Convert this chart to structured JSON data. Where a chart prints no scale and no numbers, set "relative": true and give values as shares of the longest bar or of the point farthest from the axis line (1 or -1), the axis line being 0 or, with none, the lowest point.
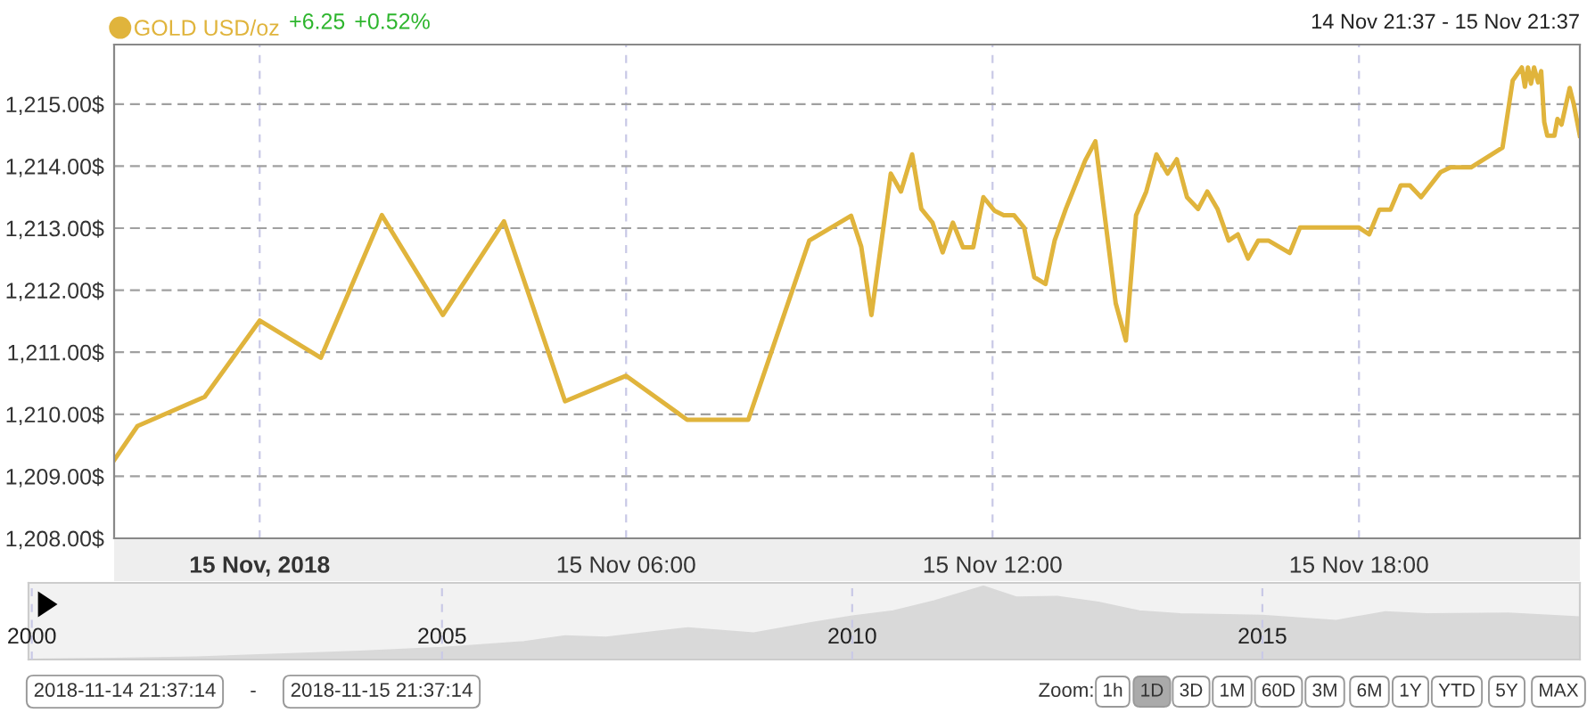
{
  "chart_data": [
    {
      "type": "line",
      "subtitle": "14 Nov 21:37 - 15 Nov 21:37",
      "legend": "top left",
      "grid": true,
      "line_style": "solid",
      "annotations": [
        "+6.25",
        "+0.52%"
      ],
      "xlim": [
        "2018-11-14T21:37",
        "2018-11-15T21:37"
      ],
      "xticks": [
        {
          "value": "2018-11-15T00:00",
          "label": "15 Nov, 2018"
        },
        {
          "value": "2018-11-15T06:00",
          "label": "15 Nov 06:00"
        },
        {
          "value": "2018-11-15T12:00",
          "label": "15 Nov 12:00"
        },
        {
          "value": "2018-11-15T18:00",
          "label": "15 Nov 18:00"
        }
      ],
      "ylim": [
        1208,
        1215.96
      ],
      "yticks": [
        {
          "value": 1208,
          "label": "1,208.00$"
        },
        {
          "value": 1209,
          "label": "1,209.00$"
        },
        {
          "value": 1210,
          "label": "1,210.00$"
        },
        {
          "value": 1211,
          "label": "1,211.00$"
        },
        {
          "value": 1212,
          "label": "1,212.00$"
        },
        {
          "value": 1213,
          "label": "1,213.00$"
        },
        {
          "value": 1214,
          "label": "1,214.00$"
        },
        {
          "value": 1215,
          "label": "1,215.00$"
        }
      ],
      "series": [
        {
          "name": "GOLD USD/oz",
          "color": "#e0b43c",
          "x": [
            "2018-11-14T21:37",
            "2018-11-14T22:00",
            "2018-11-14T23:06",
            "2018-11-15T00:00",
            "2018-11-15T01:00",
            "2018-11-15T02:00",
            "2018-11-15T03:00",
            "2018-11-15T04:00",
            "2018-11-15T05:00",
            "2018-11-15T06:00",
            "2018-11-15T07:00",
            "2018-11-15T08:00",
            "2018-11-15T09:00",
            "2018-11-15T09:41",
            "2018-11-15T09:51",
            "2018-11-15T10:01",
            "2018-11-15T10:20",
            "2018-11-15T10:30",
            "2018-11-15T10:41",
            "2018-11-15T10:50",
            "2018-11-15T11:01",
            "2018-11-15T11:11",
            "2018-11-15T11:21",
            "2018-11-15T11:31",
            "2018-11-15T11:41",
            "2018-11-15T11:51",
            "2018-11-15T12:02",
            "2018-11-15T12:11",
            "2018-11-15T12:21",
            "2018-11-15T12:31",
            "2018-11-15T12:41",
            "2018-11-15T12:52",
            "2018-11-15T13:01",
            "2018-11-15T13:12",
            "2018-11-15T13:31",
            "2018-11-15T13:41",
            "2018-11-15T14:01",
            "2018-11-15T14:11",
            "2018-11-15T14:21",
            "2018-11-15T14:31",
            "2018-11-15T14:41",
            "2018-11-15T14:52",
            "2018-11-15T15:01",
            "2018-11-15T15:11",
            "2018-11-15T15:22",
            "2018-11-15T15:31",
            "2018-11-15T15:41",
            "2018-11-15T15:52",
            "2018-11-15T16:01",
            "2018-11-15T16:11",
            "2018-11-15T16:21",
            "2018-11-15T16:31",
            "2018-11-15T16:52",
            "2018-11-15T17:02",
            "2018-11-15T18:00",
            "2018-11-15T18:10",
            "2018-11-15T18:20",
            "2018-11-15T18:31",
            "2018-11-15T18:41",
            "2018-11-15T18:50",
            "2018-11-15T19:01",
            "2018-11-15T19:20",
            "2018-11-15T19:30",
            "2018-11-15T19:50",
            "2018-11-15T20:21",
            "2018-11-15T20:31",
            "2018-11-15T20:40",
            "2018-11-15T20:43",
            "2018-11-15T20:46",
            "2018-11-15T20:49",
            "2018-11-15T20:52",
            "2018-11-15T20:56",
            "2018-11-15T20:59",
            "2018-11-15T21:02",
            "2018-11-15T21:05",
            "2018-11-15T21:12",
            "2018-11-15T21:15",
            "2018-11-15T21:19",
            "2018-11-15T21:27",
            "2018-11-15T21:31",
            "2018-11-15T21:37"
          ],
          "values": [
            1209.26,
            1209.81,
            1210.28,
            1211.51,
            1210.91,
            1213.21,
            1211.6,
            1213.11,
            1210.21,
            1210.62,
            1209.91,
            1209.91,
            1212.8,
            1213.2,
            1212.7,
            1211.6,
            1213.88,
            1213.59,
            1214.19,
            1213.31,
            1213.09,
            1212.61,
            1213.09,
            1212.69,
            1212.69,
            1213.5,
            1213.28,
            1213.21,
            1213.21,
            1213.01,
            1212.21,
            1212.1,
            1212.8,
            1213.31,
            1214.09,
            1214.4,
            1211.79,
            1211.19,
            1213.21,
            1213.59,
            1214.19,
            1213.88,
            1214.11,
            1213.5,
            1213.31,
            1213.59,
            1213.31,
            1212.8,
            1212.9,
            1212.51,
            1212.8,
            1212.8,
            1212.6,
            1213.01,
            1213.01,
            1212.9,
            1213.3,
            1213.3,
            1213.69,
            1213.69,
            1213.5,
            1213.9,
            1213.98,
            1213.98,
            1214.3,
            1215.38,
            1215.59,
            1215.28,
            1215.59,
            1215.33,
            1215.59,
            1215.35,
            1215.53,
            1214.71,
            1214.49,
            1214.49,
            1214.76,
            1214.67,
            1215.26,
            1215.0,
            1214.49
          ]
        }
      ]
    },
    {
      "type": "area",
      "relative": true,
      "color": "#d9d9d9",
      "grid": "x",
      "xlim": [
        1999.96,
        2018.87
      ],
      "xticks": [
        2000,
        2005,
        2010,
        2015
      ],
      "x": [
        1999.96,
        2001.0,
        2002.0,
        2003.0,
        2004.0,
        2005.0,
        2006.0,
        2006.5,
        2007.0,
        2008.0,
        2008.8,
        2009.5,
        2010.0,
        2010.5,
        2011.0,
        2011.6,
        2012.0,
        2012.5,
        2013.0,
        2013.5,
        2014.0,
        2015.0,
        2015.9,
        2016.5,
        2017.0,
        2018.0,
        2018.87
      ],
      "values": [
        0.0,
        0.01,
        0.03,
        0.07,
        0.11,
        0.16,
        0.24,
        0.32,
        0.3,
        0.43,
        0.36,
        0.5,
        0.59,
        0.66,
        0.8,
        1.0,
        0.85,
        0.86,
        0.78,
        0.66,
        0.62,
        0.6,
        0.53,
        0.65,
        0.62,
        0.63,
        0.58
      ],
      "annotations": [
        "2018-11-14 21:37:14",
        "-",
        "2018-11-15 21:37:14",
        "Zoom:",
        "1h",
        "1D",
        "3D",
        "1M",
        "60D",
        "3M",
        "6M",
        "1Y",
        "YTD",
        "5Y",
        "MAX"
      ]
    }
  ]
}
